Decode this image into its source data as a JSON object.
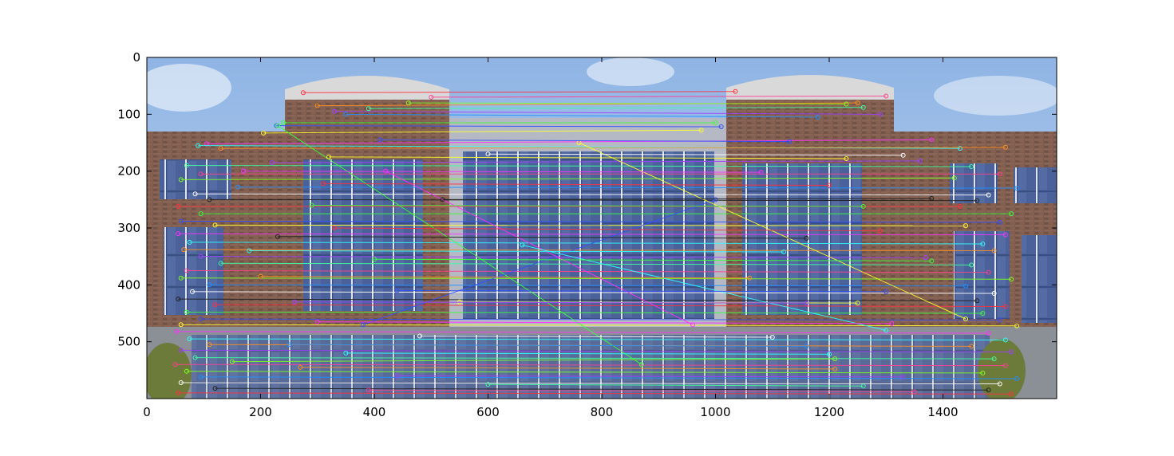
{
  "chart_data": {
    "type": "scatter",
    "title": "",
    "xlabel": "",
    "ylabel": "",
    "xlim": [
      0,
      1600
    ],
    "ylim": [
      600,
      0
    ],
    "y_inverted": true,
    "grid": false,
    "x_ticks": [
      0,
      200,
      400,
      600,
      800,
      1000,
      1200,
      1400
    ],
    "y_ticks": [
      0,
      100,
      200,
      300,
      400,
      500
    ],
    "image_content": "building-facade-panorama-with-feature-match-lines",
    "palette": [
      "#ff3040",
      "#3cff3c",
      "#3050ff",
      "#ffff30",
      "#ff30ff",
      "#30ffff",
      "#ff9020",
      "#a040ff",
      "#40ffa0",
      "#ff4090",
      "#80ff20",
      "#2090ff",
      "#ffffff",
      "#202020"
    ],
    "matches": [
      [
        275,
        62,
        1035,
        60
      ],
      [
        240,
        115,
        1000,
        115
      ],
      [
        228,
        120,
        1010,
        122
      ],
      [
        205,
        133,
        975,
        128
      ],
      [
        105,
        152,
        1380,
        145
      ],
      [
        90,
        155,
        1430,
        160
      ],
      [
        130,
        160,
        1510,
        158
      ],
      [
        220,
        185,
        1360,
        182
      ],
      [
        70,
        190,
        1450,
        192
      ],
      [
        95,
        205,
        1500,
        205
      ],
      [
        60,
        215,
        1420,
        212
      ],
      [
        160,
        228,
        1530,
        230
      ],
      [
        85,
        240,
        1480,
        242
      ],
      [
        110,
        250,
        1460,
        252
      ],
      [
        55,
        262,
        1430,
        262
      ],
      [
        95,
        275,
        1520,
        275
      ],
      [
        60,
        288,
        1500,
        290
      ],
      [
        120,
        295,
        1440,
        296
      ],
      [
        55,
        310,
        1510,
        312
      ],
      [
        75,
        325,
        1470,
        328
      ],
      [
        65,
        338,
        1490,
        340
      ],
      [
        95,
        350,
        1370,
        352
      ],
      [
        130,
        362,
        1450,
        365
      ],
      [
        70,
        375,
        1480,
        378
      ],
      [
        60,
        388,
        1520,
        390
      ],
      [
        110,
        400,
        1440,
        402
      ],
      [
        80,
        412,
        1490,
        415
      ],
      [
        55,
        425,
        1460,
        428
      ],
      [
        120,
        435,
        1510,
        438
      ],
      [
        70,
        448,
        1470,
        450
      ],
      [
        95,
        460,
        1500,
        462
      ],
      [
        60,
        470,
        1530,
        472
      ],
      [
        52,
        482,
        1480,
        485
      ],
      [
        75,
        495,
        1510,
        497
      ],
      [
        110,
        505,
        1450,
        508
      ],
      [
        60,
        515,
        1520,
        518
      ],
      [
        85,
        528,
        1490,
        530
      ],
      [
        50,
        540,
        1510,
        542
      ],
      [
        70,
        552,
        1470,
        555
      ],
      [
        95,
        562,
        1530,
        565
      ],
      [
        60,
        572,
        1500,
        574
      ],
      [
        120,
        582,
        1480,
        585
      ],
      [
        55,
        590,
        1520,
        592
      ],
      [
        230,
        120,
        870,
        540
      ],
      [
        380,
        470,
        1000,
        250
      ],
      [
        760,
        150,
        1440,
        460
      ],
      [
        420,
        200,
        960,
        470
      ],
      [
        660,
        330,
        1300,
        480
      ],
      [
        300,
        85,
        1250,
        80
      ],
      [
        330,
        95,
        1290,
        100
      ],
      [
        390,
        90,
        1260,
        88
      ],
      [
        500,
        70,
        1300,
        68
      ],
      [
        460,
        80,
        1230,
        82
      ],
      [
        350,
        100,
        1180,
        105
      ],
      [
        600,
        170,
        1330,
        172
      ],
      [
        520,
        250,
        1380,
        248
      ],
      [
        330,
        300,
        1290,
        305
      ],
      [
        400,
        355,
        1380,
        358
      ],
      [
        440,
        410,
        1300,
        412
      ],
      [
        550,
        430,
        1250,
        432
      ],
      [
        300,
        465,
        1310,
        468
      ],
      [
        350,
        520,
        1200,
        522
      ],
      [
        270,
        545,
        1210,
        548
      ],
      [
        440,
        560,
        1330,
        562
      ],
      [
        600,
        575,
        1260,
        578
      ],
      [
        390,
        585,
        1350,
        588
      ],
      [
        150,
        535,
        1210,
        530
      ],
      [
        250,
        505,
        1160,
        508
      ],
      [
        480,
        490,
        1100,
        492
      ],
      [
        230,
        315,
        1160,
        318
      ],
      [
        310,
        222,
        1200,
        225
      ],
      [
        290,
        260,
        1260,
        262
      ],
      [
        410,
        145,
        1130,
        148
      ],
      [
        320,
        175,
        1230,
        178
      ],
      [
        170,
        200,
        1080,
        202
      ],
      [
        180,
        340,
        1120,
        342
      ],
      [
        200,
        385,
        1060,
        388
      ],
      [
        260,
        430,
        1160,
        432
      ]
    ]
  }
}
